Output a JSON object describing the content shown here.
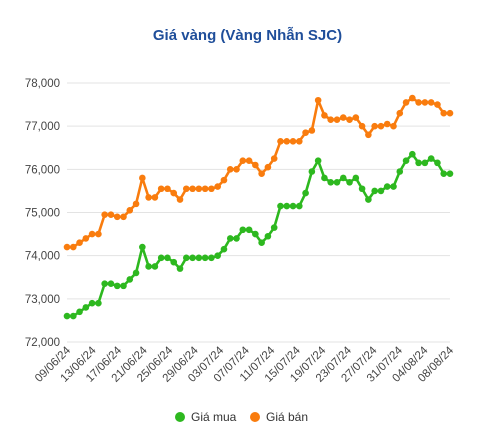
{
  "chart_data": {
    "type": "line",
    "title": "Giá vàng (Vàng Nhẫn SJC)",
    "xlabel": "",
    "ylabel": "",
    "ylim": [
      72000,
      78000
    ],
    "y_ticks": [
      "72,000",
      "73,000",
      "74,000",
      "75,000",
      "76,000",
      "77,000",
      "78,000"
    ],
    "y_tick_values": [
      72000,
      73000,
      74000,
      75000,
      76000,
      77000,
      78000
    ],
    "grid": true,
    "legend_position": "bottom",
    "x_tick_labels": [
      "09/06/24",
      "13/06/24",
      "17/06/24",
      "21/06/24",
      "25/06/24",
      "29/06/24",
      "03/07/24",
      "07/07/24",
      "11/07/24",
      "15/07/24",
      "19/07/24",
      "23/07/24",
      "27/07/24",
      "31/07/24",
      "04/08/24",
      "08/08/24"
    ],
    "series": [
      {
        "name": "Giá mua",
        "color": "#2db81f",
        "values": [
          72600,
          72600,
          72700,
          72800,
          72900,
          72900,
          73350,
          73350,
          73300,
          73300,
          73450,
          73600,
          74200,
          73750,
          73750,
          73950,
          73950,
          73850,
          73700,
          73950,
          73950,
          73950,
          73950,
          73950,
          74000,
          74150,
          74400,
          74400,
          74600,
          74600,
          74500,
          74300,
          74450,
          74650,
          75150,
          75150,
          75150,
          75150,
          75450,
          75950,
          76200,
          75800,
          75700,
          75700,
          75800,
          75700,
          75800,
          75550,
          75300,
          75500,
          75500,
          75600,
          75600,
          75950,
          76200,
          76350,
          76150,
          76150,
          76250,
          76150,
          75900,
          75900
        ]
      },
      {
        "name": "Giá bán",
        "color": "#f97c0e",
        "values": [
          74200,
          74200,
          74300,
          74400,
          74500,
          74500,
          74950,
          74950,
          74900,
          74900,
          75050,
          75200,
          75800,
          75350,
          75350,
          75550,
          75550,
          75450,
          75300,
          75550,
          75550,
          75550,
          75550,
          75550,
          75600,
          75750,
          76000,
          76000,
          76200,
          76200,
          76100,
          75900,
          76050,
          76250,
          76650,
          76650,
          76650,
          76650,
          76850,
          76900,
          77600,
          77250,
          77150,
          77150,
          77200,
          77150,
          77200,
          77000,
          76800,
          77000,
          77000,
          77050,
          77000,
          77300,
          77550,
          77650,
          77550,
          77550,
          77550,
          77500,
          77300,
          77300
        ]
      }
    ]
  }
}
